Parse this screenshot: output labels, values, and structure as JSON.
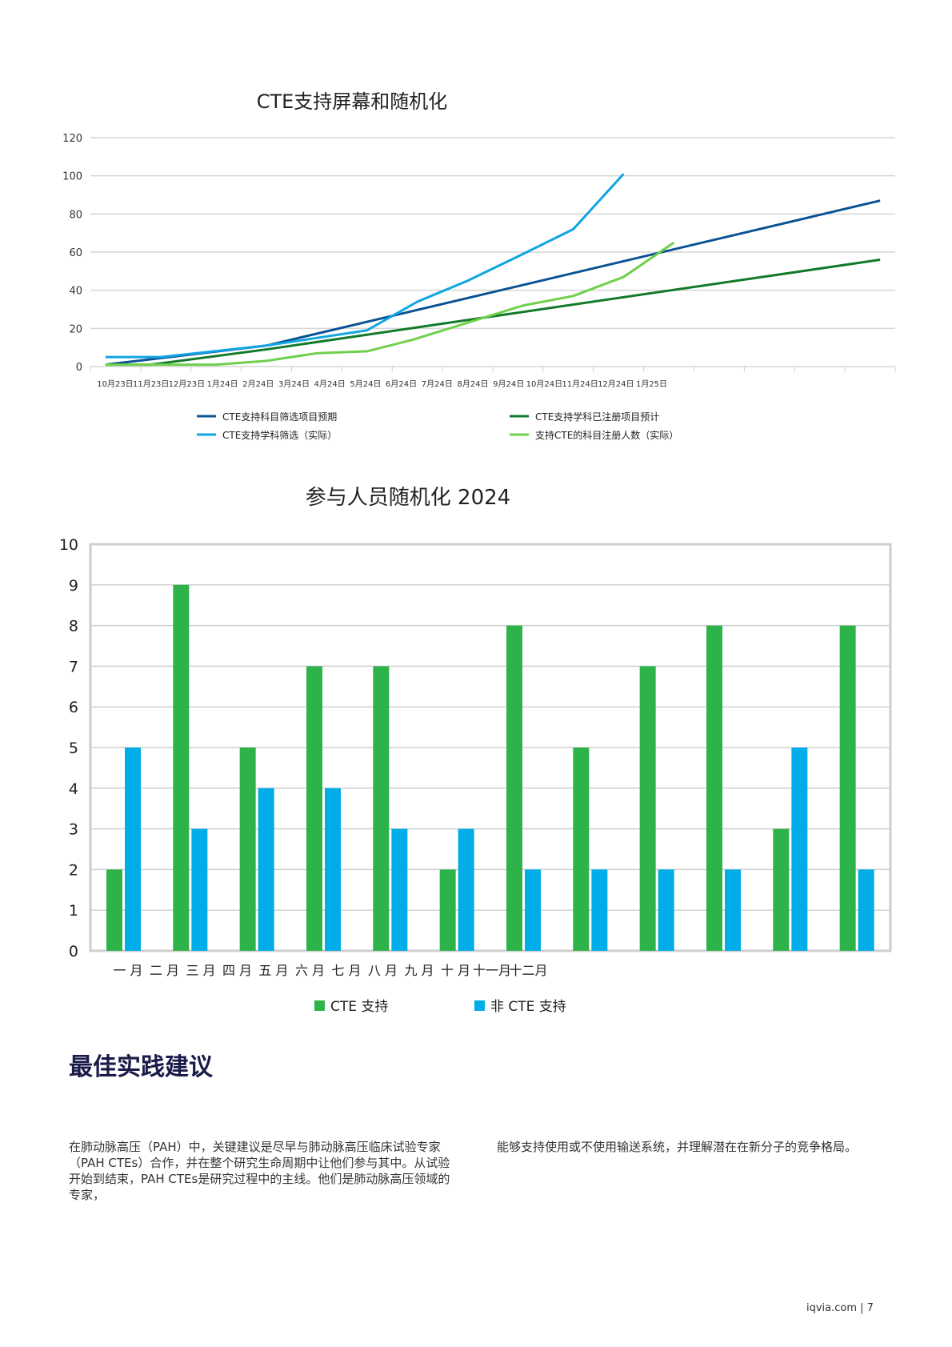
{
  "chart_data": [
    {
      "type": "line",
      "title": "CTE支持屏幕和随机化",
      "ylim": [
        0,
        120
      ],
      "yticks": [
        0,
        20,
        40,
        60,
        80,
        100,
        120
      ],
      "categories": [
        "10月23日",
        "11月23日",
        "12月23日",
        "1月24日",
        "2月24日",
        "3月24日",
        "4月24日",
        "5月24日",
        "6月24日",
        "7月24日",
        "8月24日",
        "9月24日",
        "10月24日",
        "11月24日",
        "12月24日",
        "1月25日"
      ],
      "grid": true,
      "legend": "bottom",
      "series": [
        {
          "name": "CTE支持科目筛选项目预期",
          "color": "#0b5394",
          "points": [
            [
              0.3,
              1
            ],
            [
              3.5,
              11
            ],
            [
              15.7,
              87
            ]
          ]
        },
        {
          "name": "CTE支持学科已注册项目预计",
          "color": "#127a2a",
          "points": [
            [
              0.3,
              1
            ],
            [
              1.2,
              1
            ],
            [
              3.5,
              9
            ],
            [
              15.7,
              56
            ]
          ]
        },
        {
          "name": "CTE支持学科筛选（实际）",
          "color": "#12a5e2",
          "points": [
            [
              0.3,
              5
            ],
            [
              1.4,
              5
            ],
            [
              3.5,
              11
            ],
            [
              5.5,
              19
            ],
            [
              6.5,
              34
            ],
            [
              7.5,
              45
            ],
            [
              8.6,
              59
            ],
            [
              9.6,
              72
            ],
            [
              10.6,
              101
            ]
          ]
        },
        {
          "name": "支持CTE的科目注册人数（实际）",
          "color": "#6fd04c",
          "points": [
            [
              0.3,
              1
            ],
            [
              2.5,
              1
            ],
            [
              3.5,
              3
            ],
            [
              4.5,
              7
            ],
            [
              5.5,
              8
            ],
            [
              6.4,
              14
            ],
            [
              7.5,
              23
            ],
            [
              8.6,
              32
            ],
            [
              9.6,
              37
            ],
            [
              10.6,
              47
            ],
            [
              11.6,
              65
            ]
          ]
        }
      ]
    },
    {
      "type": "bar",
      "title": "参与人员随机化 2024",
      "ylim": [
        0,
        10
      ],
      "yticks": [
        0,
        1,
        2,
        3,
        4,
        5,
        6,
        7,
        8,
        9,
        10
      ],
      "categories": [
        "一 月",
        "二 月",
        "三 月",
        "四 月",
        "五 月",
        "六 月",
        "七 月",
        "八 月",
        "九 月",
        "十 月",
        "十一月",
        "十二月"
      ],
      "legend": "bottom",
      "series": [
        {
          "name": "CTE 支持",
          "color": "#2db34a",
          "values": [
            2,
            9,
            5,
            7,
            7,
            2,
            8,
            5,
            7,
            8,
            3,
            8
          ]
        },
        {
          "name": "非 CTE 支持",
          "color": "#00ade9",
          "values": [
            5,
            3,
            4,
            4,
            3,
            3,
            2,
            2,
            2,
            2,
            5,
            2
          ]
        }
      ]
    }
  ],
  "section": {
    "heading": "最佳实践建议",
    "col1": "在肺动脉高压（PAH）中，关键建议是尽早与肺动脉高压临床试验专家（PAH CTEs）合作，并在整个研究生命周期中让他们参与其中。从试验开始到结束，PAH CTEs是研究过程中的主线。他们是肺动脉高压领域的专家，",
    "col2": "能够支持使用或不使用输送系统，并理解潜在在新分子的竞争格局。"
  },
  "footer": "iqvia.com | 7"
}
